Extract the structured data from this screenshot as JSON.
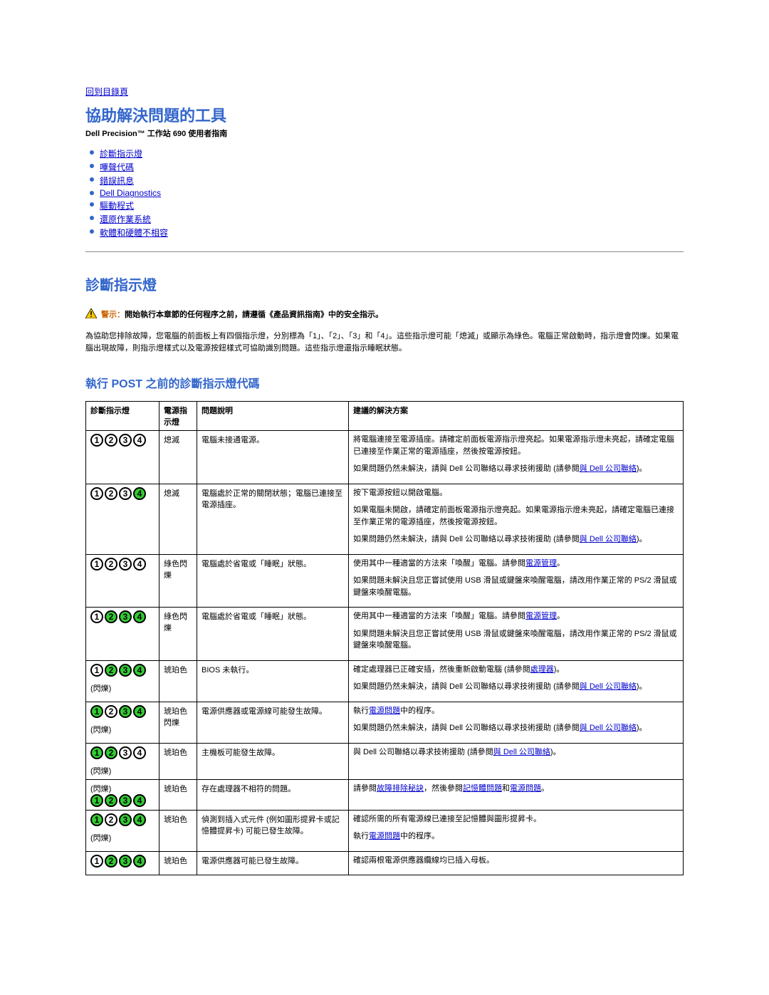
{
  "top_link": "回到目錄頁",
  "title": "協助解決問題的工具",
  "subtitle": "Dell Precision™ 工作站 690 使用者指南",
  "nav": [
    "診斷指示燈",
    "嗶聲代碼",
    "錯誤訊息",
    "Dell Diagnostics",
    "驅動程式",
    "還原作業系統",
    "軟體和硬體不相容"
  ],
  "section1_title": "診斷指示燈",
  "warning_lead": "警示：",
  "warning_text": "開始執行本章節的任何程序之前，請遵循《產品資訊指南》中的安全指示。",
  "intro": "為協助您排除故障，您電腦的前面板上有四個指示燈，分別標為「1」、「2」、「3」和「4」。這些指示燈可能「熄滅」或顯示為綠色。電腦正常啟動時，指示燈會閃爍。如果電腦出現故障，則指示燈樣式以及電源按鈕樣式可協助識別問題。這些指示燈還指示睡眠狀態。",
  "section2_title": "執行 POST 之前的診斷指示燈代碼",
  "headers": {
    "lights": "診斷指示燈",
    "power": "電源指示燈",
    "desc": "問題說明",
    "solution": "建議的解決方案"
  },
  "link_contact_dell": "與 Dell 公司聯絡",
  "link_power_mgmt": "電源管理",
  "link_processor": "處理器",
  "link_power_problems": "電源問題",
  "link_troubleshoot": "故障排除秘訣",
  "link_memory_problems": "記憶體問題",
  "blink_label": "(閃爍)",
  "rows": [
    {
      "pattern": [
        0,
        0,
        0,
        0
      ],
      "blink_first": false,
      "blink_note": false,
      "power": "熄滅",
      "desc": "電腦未接通電源。",
      "sol": [
        "將電腦連接至電源插座。請確定前面板電源指示燈亮起。如果電源指示燈未亮起，請確定電腦已連接至作業正常的電源插座，然後按電源按鈕。",
        "如果問題仍然未解決，請與 Dell 公司聯絡以尋求技術援助 (請參閱<a>與 Dell 公司聯絡</a>)。"
      ]
    },
    {
      "pattern": [
        0,
        0,
        0,
        1
      ],
      "blink_first": false,
      "blink_note": false,
      "power": "熄滅",
      "desc": "電腦處於正常的關閉狀態；電腦已連接至電源插座。",
      "sol": [
        "按下電源按鈕以開啟電腦。",
        "如果電腦未開啟，請確定前面板電源指示燈亮起。如果電源指示燈未亮起，請確定電腦已連接至作業正常的電源插座，然後按電源按鈕。",
        "如果問題仍然未解決，請與 Dell 公司聯絡以尋求技術援助 (請參閱<a>與 Dell 公司聯絡</a>)。"
      ]
    },
    {
      "pattern": [
        0,
        0,
        0,
        0
      ],
      "blink_first": false,
      "blink_note": false,
      "power": "綠色閃爍",
      "desc": "電腦處於省電或「睡眠」狀態。",
      "sol": [
        "使用其中一種適當的方法來「喚醒」電腦。請參閱<a>電源管理</a>。",
        "如果問題未解決且您正嘗試使用 USB 滑鼠或鍵盤來喚醒電腦，請改用作業正常的 PS/2 滑鼠或鍵盤來喚醒電腦。"
      ]
    },
    {
      "pattern": [
        0,
        1,
        1,
        1
      ],
      "blink_first": false,
      "blink_note": false,
      "power": "綠色閃爍",
      "desc": "電腦處於省電或「睡眠」狀態。",
      "sol": [
        "使用其中一種適當的方法來「喚醒」電腦。請參閱<a>電源管理</a>。",
        "如果問題未解決且您正嘗試使用 USB 滑鼠或鍵盤來喚醒電腦，請改用作業正常的 PS/2 滑鼠或鍵盤來喚醒電腦。"
      ]
    },
    {
      "pattern": [
        0,
        1,
        1,
        1
      ],
      "blink_first": false,
      "blink_note": true,
      "power": "琥珀色",
      "desc": "BIOS 未執行。",
      "sol": [
        "確定處理器已正確安插，然後重新啟動電腦 (請參閱<a>處理器</a>)。",
        "如果問題仍然未解決，請與 Dell 公司聯絡以尋求技術援助 (請參閱<a>與 Dell 公司聯絡</a>)。"
      ]
    },
    {
      "pattern": [
        1,
        0,
        1,
        1
      ],
      "blink_first": false,
      "blink_note": true,
      "power": "琥珀色閃爍",
      "desc": "電源供應器或電源線可能發生故障。",
      "sol": [
        "執行<a>電源問題</a>中的程序。",
        "如果問題仍然未解決，請與 Dell 公司聯絡以尋求技術援助 (請參閱<a>與 Dell 公司聯絡</a>)。"
      ]
    },
    {
      "pattern": [
        1,
        1,
        0,
        0
      ],
      "blink_first": false,
      "blink_note": true,
      "power": "琥珀色",
      "desc": "主機板可能發生故障。",
      "sol": [
        "與 Dell 公司聯絡以尋求技術援助 (請參閱<a>與 Dell 公司聯絡</a>)。"
      ]
    },
    {
      "pattern": [
        1,
        1,
        1,
        1
      ],
      "blink_first": true,
      "blink_note": false,
      "power": "琥珀色",
      "desc": "存在處理器不相符的問題。",
      "sol": [
        "請參閱<a>故障排除秘訣</a>，然後參閱<a>記憶體問題</a>和<a>電源問題</a>。"
      ]
    },
    {
      "pattern": [
        1,
        0,
        1,
        1
      ],
      "blink_first": false,
      "blink_note": true,
      "power": "琥珀色",
      "desc": "偵測到插入式元件 (例如圖形提昇卡或記憶體提昇卡) 可能已發生故障。",
      "sol": [
        "確認所需的所有電源線已連接至記憶體與圖形提昇卡。",
        "執行<a>電源問題</a>中的程序。"
      ]
    },
    {
      "pattern": [
        0,
        1,
        1,
        1
      ],
      "blink_first": false,
      "blink_note": false,
      "power": "琥珀色",
      "desc": "電源供應器可能已發生故障。",
      "sol": [
        "確認兩根電源供應器纜線均已插入母板。"
      ]
    }
  ],
  "colors": {
    "link": "#0000cc",
    "heading": "#3366cc",
    "led_on": "#33cc33",
    "warn": "#cc6600"
  }
}
